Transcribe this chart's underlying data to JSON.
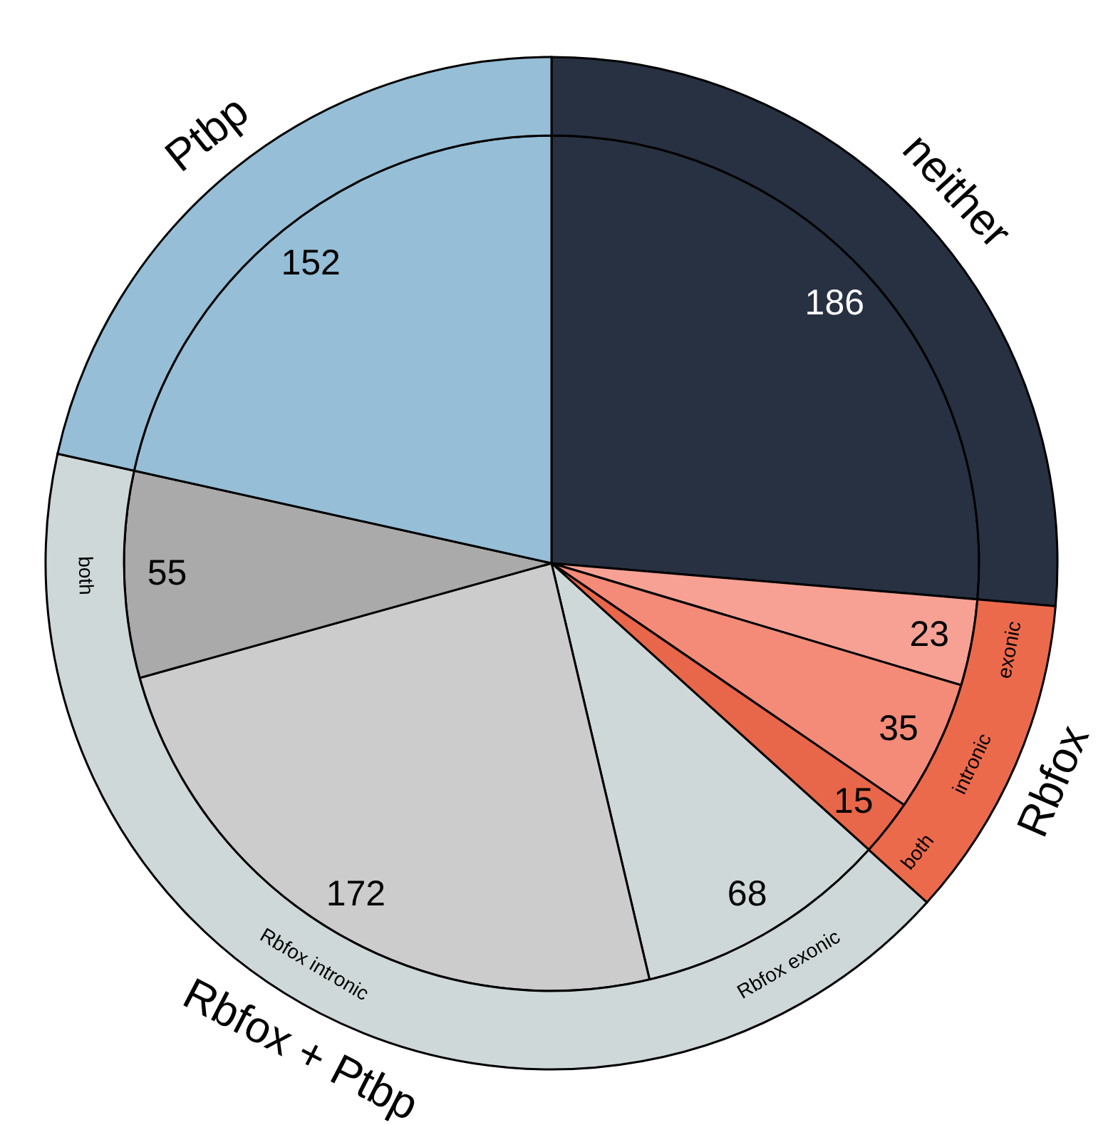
{
  "chart_data": {
    "type": "pie",
    "categories": [
      null,
      "exonic",
      "intronic",
      "both",
      "Rbfox exonic",
      "Rbfox intronic",
      "both",
      null
    ],
    "series": [
      {
        "values": [
          186,
          23,
          35,
          15,
          68,
          172,
          55,
          152
        ],
        "colors": [
          "#283142",
          "#f6a194",
          "#f48b78",
          "#e8664a",
          "#cfd8d8",
          "#cccccc",
          "#a9aaa9",
          "#96bfd7"
        ],
        "value_labels": [
          "186",
          "23",
          "35",
          "15",
          "68",
          "172",
          "55",
          "152"
        ]
      },
      {
        "values": [
          26.35,
          10.34,
          null,
          null,
          41.78,
          null,
          null,
          21.53
        ],
        "colors": [
          "#283142",
          "#ec6a4c",
          null,
          null,
          "#cfd8d8",
          null,
          null,
          "#96bfd7"
        ]
      }
    ],
    "annotations": [
      "neither",
      "Rbfox",
      "Rbfox + Ptbp",
      "Ptbp"
    ]
  }
}
